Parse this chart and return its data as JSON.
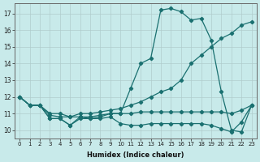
{
  "xlabel": "Humidex (Indice chaleur)",
  "background_color": "#c8eaea",
  "grid_color": "#b0cccc",
  "line_color": "#1a7070",
  "x_values": [
    0,
    1,
    2,
    3,
    4,
    5,
    6,
    7,
    8,
    9,
    10,
    11,
    12,
    13,
    14,
    15,
    16,
    17,
    18,
    19,
    20,
    21,
    22,
    23
  ],
  "line1": [
    12.0,
    11.5,
    11.5,
    10.7,
    10.7,
    10.3,
    10.8,
    10.7,
    10.8,
    11.0,
    11.0,
    12.5,
    14.0,
    14.3,
    17.2,
    17.3,
    17.1,
    16.6,
    16.7,
    15.4,
    12.3,
    10.0,
    9.9,
    11.5
  ],
  "line2": [
    12.0,
    11.5,
    11.5,
    11.0,
    11.0,
    10.8,
    11.0,
    11.0,
    11.1,
    11.2,
    11.3,
    11.5,
    11.7,
    12.0,
    12.3,
    12.5,
    13.0,
    14.0,
    14.5,
    15.0,
    15.5,
    15.8,
    16.3,
    16.5
  ],
  "line3": [
    12.0,
    11.5,
    11.5,
    10.9,
    10.8,
    10.8,
    10.8,
    10.8,
    10.9,
    11.0,
    11.0,
    11.0,
    11.1,
    11.1,
    11.1,
    11.1,
    11.1,
    11.1,
    11.1,
    11.1,
    11.1,
    11.0,
    11.2,
    11.5
  ],
  "line4": [
    12.0,
    11.5,
    11.5,
    10.7,
    10.7,
    10.3,
    10.7,
    10.7,
    10.7,
    10.8,
    10.4,
    10.3,
    10.3,
    10.4,
    10.4,
    10.4,
    10.4,
    10.4,
    10.4,
    10.3,
    10.1,
    9.9,
    10.5,
    11.5
  ],
  "yticks": [
    10,
    11,
    12,
    13,
    14,
    15,
    16,
    17
  ],
  "ylim": [
    9.5,
    17.6
  ],
  "xlim": [
    -0.5,
    23.5
  ]
}
